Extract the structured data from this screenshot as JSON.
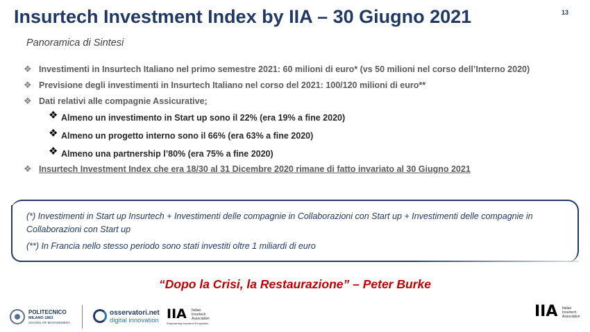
{
  "header": {
    "title": "Insurtech Investment Index by IIA – 30 Giugno 2021",
    "page_number": "13",
    "subtitle": "Panoramica di Sintesi"
  },
  "bullets": [
    {
      "text": "Investimenti in Insurtech Italiano nel primo semestre 2021: 60 milioni di euro* (vs 50 milioni nel corso dell’Interno 2020)"
    },
    {
      "text": "Previsione degli investimenti in Insurtech Italiano nel corso del 2021: 100/120 milioni di euro**"
    },
    {
      "text": "Dati relativi alle compagnie Assicurative;",
      "sub": [
        "Almeno un investimento in Start up sono il 22% (era 19% a fine 2020)",
        "Almeno un progetto interno sono il 66% (era 63% a fine 2020)",
        "Almeno una partnership l’80% (era 75% a fine 2020)"
      ]
    },
    {
      "text": "Insurtech Investment Index che era 18/30 al 31 Dicembre 2020 rimane di fatto invariato al 30 Giugno 2021"
    }
  ],
  "notes": {
    "note1": "(*) Investimenti in Start up Insurtech +  Investimenti delle compagnie in Collaborazioni con Start up + Investimenti delle compagnie in Collaborazioni con Start up",
    "note2": "(**) In Francia nello stesso periodo sono stati investiti oltre 1 miliardi di euro"
  },
  "quote": "“Dopo la Crisi, la Restaurazione” – Peter Burke",
  "footer": {
    "polimi": {
      "name": "POLITECNICO",
      "line2": "MILANO 1863",
      "line3": "SCHOOL OF MANAGEMENT"
    },
    "observatori": {
      "line1": "osservatori.net",
      "line2": "digital innovation"
    },
    "iia_small": {
      "mark": "IIA",
      "text": [
        "Italian",
        "Insurtech",
        "Association"
      ],
      "tagline": "Empowering Insurtech Ecosystem"
    },
    "iia_big": {
      "mark": "IIA",
      "text": [
        "Italian",
        "Insurtech",
        "Association"
      ]
    }
  },
  "colors": {
    "title": "#1f3864",
    "quote": "#c00000",
    "bullet_text": "#595959",
    "box_border": "#1f3864"
  },
  "icons": {
    "bullet": "diamond-bullet-icon",
    "sub_bullet": "diamond-bullet-icon"
  }
}
